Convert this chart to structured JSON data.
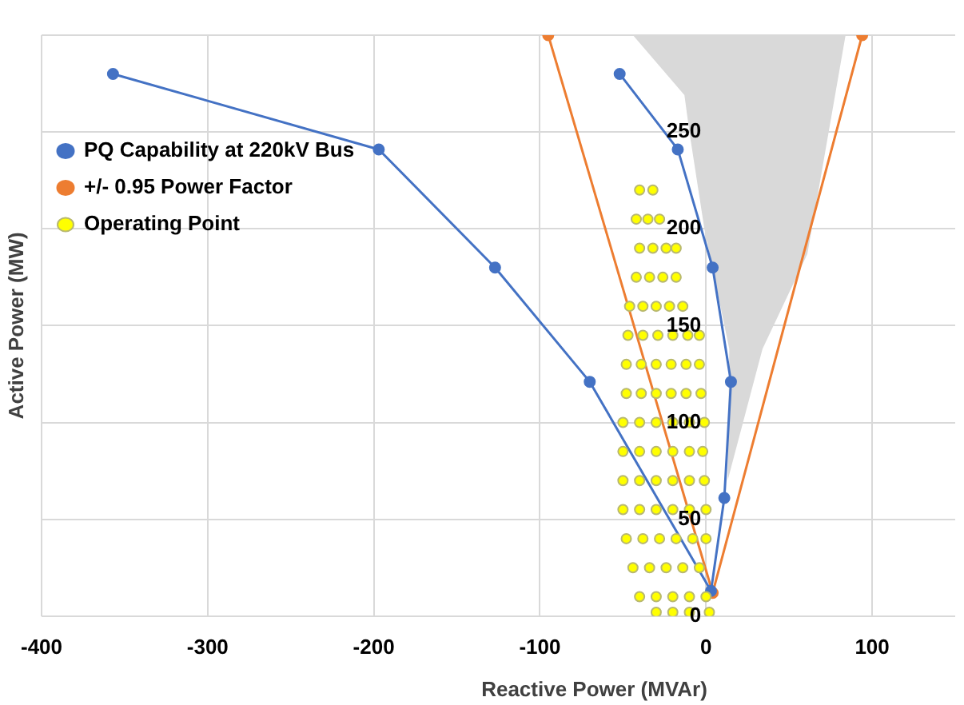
{
  "chart_data": {
    "type": "scatter",
    "xlabel": "Reactive Power (MVAr)",
    "ylabel": "Active Power (MW)",
    "xlim": [
      -400,
      150
    ],
    "xticks": [
      -400,
      -300,
      -200,
      -100,
      0,
      100
    ],
    "ylim": [
      0,
      300
    ],
    "yticks": [
      0,
      50,
      100,
      150,
      200,
      250,
      {
        "value": 300,
        "label": null
      }
    ],
    "grid": true,
    "legend": "top left",
    "series": [
      {
        "type": "area",
        "color": "#d9d9d9",
        "x": [
          -44,
          -13,
          -10,
          -1,
          14,
          13,
          34,
          61,
          84
        ],
        "values": [
          300,
          269,
          250,
          200,
          138,
          70,
          138,
          187,
          300
        ]
      },
      {
        "type": "line",
        "name": "PQ Capability at 220kV Bus",
        "color": "#4472c4",
        "marker": "circle",
        "x": [
          -357,
          -197,
          -127,
          -70,
          3,
          11,
          15,
          4,
          -17,
          -52
        ],
        "values": [
          280,
          241,
          180,
          121,
          13,
          61,
          121,
          180,
          241,
          280
        ]
      },
      {
        "type": "line",
        "name": "+/- 0.95 Power Factor",
        "color": "#ed7d31",
        "marker": "circle",
        "x": [
          -95,
          4,
          94
        ],
        "values": [
          300,
          12,
          300
        ]
      },
      {
        "type": "scatter",
        "name": "Operating Point",
        "color": "#ffff00",
        "marker": "circle",
        "x": [
          -40,
          -32,
          -42,
          -35,
          -28,
          -40,
          -32,
          -24,
          -18,
          -42,
          -34,
          -26,
          -18,
          -46,
          -38,
          -30,
          -22,
          -14,
          -47,
          -38,
          -29,
          -20,
          -11,
          -4,
          -48,
          -39,
          -30,
          -21,
          -12,
          -4,
          -48,
          -39,
          -30,
          -21,
          -12,
          -3,
          -50,
          -40,
          -30,
          -20,
          -10,
          -1,
          -50,
          -40,
          -30,
          -20,
          -10,
          -2,
          -50,
          -40,
          -30,
          -20,
          -10,
          -1,
          -50,
          -40,
          -30,
          -20,
          -10,
          0,
          -48,
          -38,
          -28,
          -18,
          -8,
          0,
          -44,
          -34,
          -24,
          -14,
          -4,
          -40,
          -30,
          -20,
          -10,
          0,
          -30,
          -20,
          -10,
          2
        ],
        "values": [
          220,
          220,
          205,
          205,
          205,
          190,
          190,
          190,
          190,
          175,
          175,
          175,
          175,
          160,
          160,
          160,
          160,
          160,
          145,
          145,
          145,
          145,
          145,
          145,
          130,
          130,
          130,
          130,
          130,
          130,
          115,
          115,
          115,
          115,
          115,
          115,
          100,
          100,
          100,
          100,
          100,
          100,
          85,
          85,
          85,
          85,
          85,
          85,
          70,
          70,
          70,
          70,
          70,
          70,
          55,
          55,
          55,
          55,
          55,
          55,
          40,
          40,
          40,
          40,
          40,
          40,
          25,
          25,
          25,
          25,
          25,
          10,
          10,
          10,
          10,
          10,
          2,
          2,
          2,
          2
        ]
      }
    ]
  }
}
